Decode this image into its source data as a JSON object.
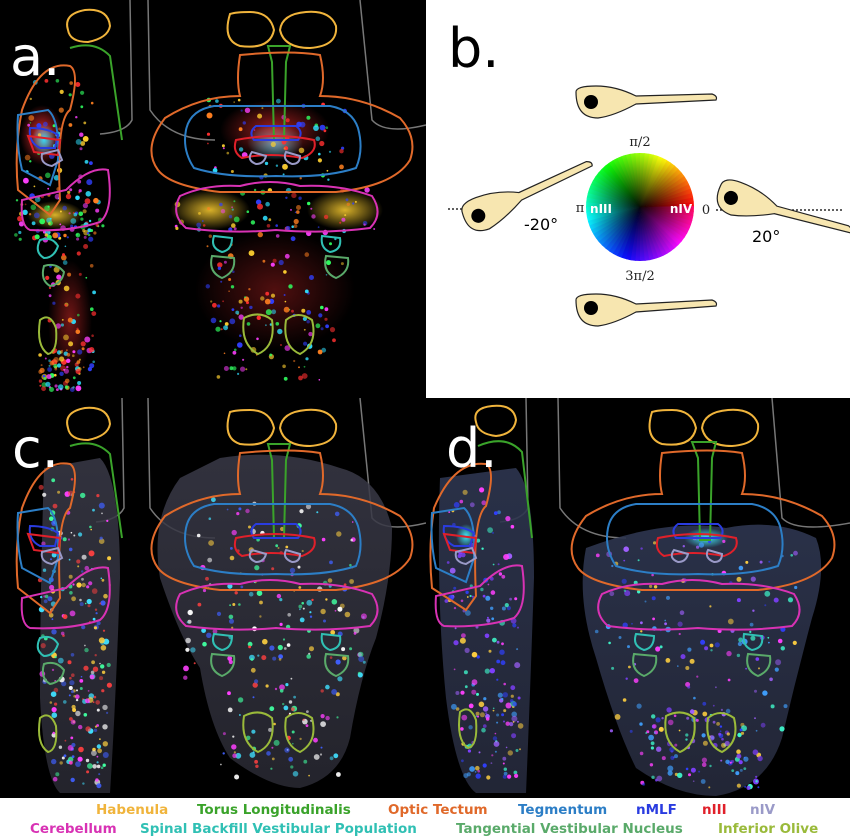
{
  "panels": {
    "a": {
      "letter": "a."
    },
    "b": {
      "letter": "b.",
      "wheel": {
        "top": "π/2",
        "left": "π",
        "right": "0",
        "bottom": "3π/2",
        "left_inner": "nIII",
        "right_inner": "nIV"
      },
      "angle_left": "-20°",
      "angle_right": "20°"
    },
    "c": {
      "letter": "c."
    },
    "d": {
      "letter": "d."
    }
  },
  "legend": {
    "row1": [
      {
        "label": "Habenula",
        "color": "#f0b43c"
      },
      {
        "label": "Torus Longitudinalis",
        "color": "#3aa32a"
      },
      {
        "label": "Optic Tectum",
        "color": "#e0692a"
      },
      {
        "label": "Tegmentum",
        "color": "#2c7ec6"
      },
      {
        "label": "nMLF",
        "color": "#2a3ce0"
      },
      {
        "label": "nIII",
        "color": "#e0202a"
      },
      {
        "label": "nIV",
        "color": "#9a9ac8"
      }
    ],
    "row2": [
      {
        "label": "Cerebellum",
        "color": "#d832b4"
      },
      {
        "label": "Spinal Backfill Vestibular Population",
        "color": "#30c0b4"
      },
      {
        "label": "Tangential Vestibular Nucleus",
        "color": "#5aaa6a"
      },
      {
        "label": "Inferior Olive",
        "color": "#9aba3a"
      }
    ]
  }
}
